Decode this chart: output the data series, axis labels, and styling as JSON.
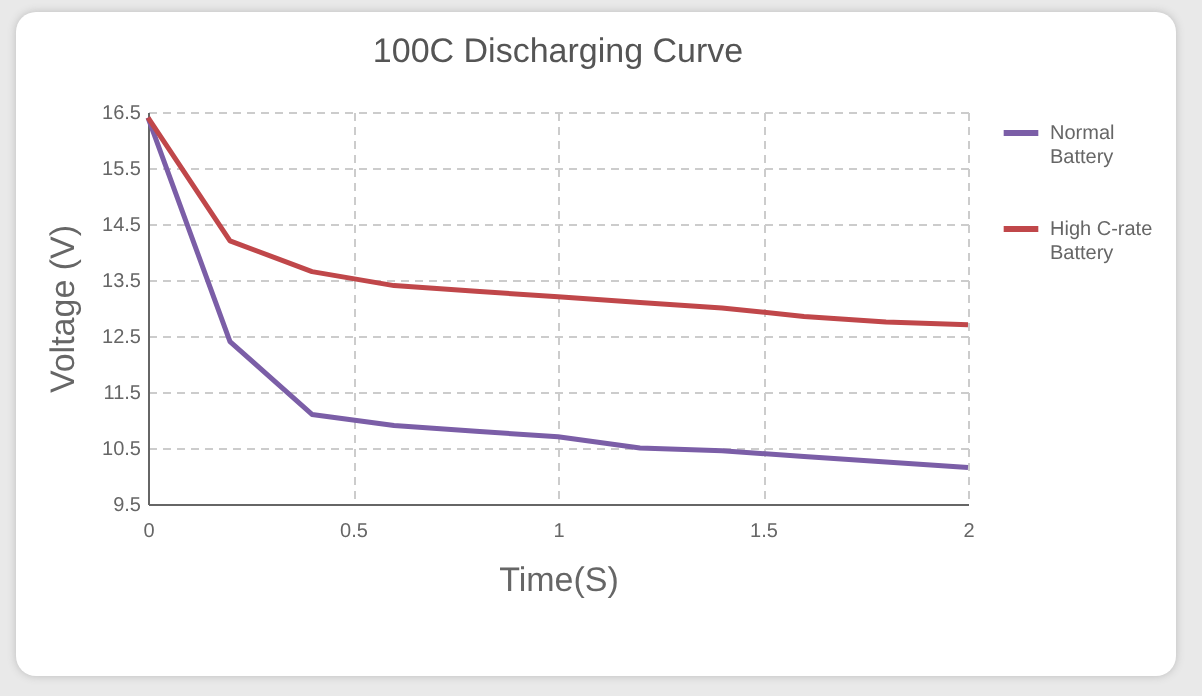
{
  "chart_data": {
    "type": "line",
    "title": "100C Discharging Curve",
    "xlabel": "Time(S)",
    "ylabel": "Voltage   (V)",
    "x": [
      0,
      0.2,
      0.4,
      0.6,
      0.8,
      1.0,
      1.2,
      1.4,
      1.6,
      1.8,
      2.0
    ],
    "series": [
      {
        "name": "Normal Battery",
        "color": "#7b5ea7",
        "values": [
          16.4,
          12.4,
          11.1,
          10.9,
          10.8,
          10.7,
          10.5,
          10.45,
          10.35,
          10.25,
          10.15
        ]
      },
      {
        "name": "High C-rate Battery",
        "color": "#c0474a",
        "values": [
          16.4,
          14.2,
          13.65,
          13.4,
          13.3,
          13.2,
          13.1,
          13.0,
          12.85,
          12.75,
          12.7
        ]
      }
    ],
    "xlim": [
      0,
      2
    ],
    "xticks": [
      0,
      0.5,
      1,
      1.5,
      2
    ],
    "ylim": [
      9.5,
      16.5
    ],
    "yticks": [
      9.5,
      10.5,
      11.5,
      12.5,
      13.5,
      14.5,
      15.5,
      16.5
    ],
    "grid": true,
    "legend": "right",
    "line_style": "solid",
    "marker": "none"
  }
}
